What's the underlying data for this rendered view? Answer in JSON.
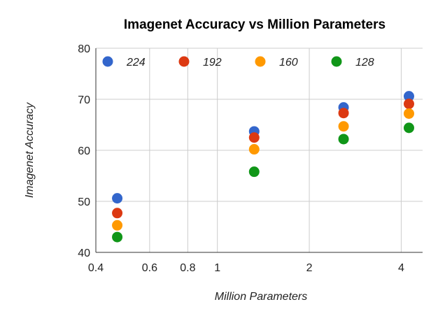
{
  "chart_data": {
    "type": "scatter",
    "title": "Imagenet Accuracy vs Million Parameters",
    "xlabel": "Million Parameters",
    "ylabel": "Imagenet Accuracy",
    "xscale": "log",
    "xlim": [
      0.4,
      4.7
    ],
    "ylim": [
      40,
      80
    ],
    "xticks": [
      0.4,
      0.6,
      0.8,
      1,
      2,
      4
    ],
    "xtick_labels": [
      "0.4",
      "0.6",
      "0.8",
      "1",
      "2",
      "4"
    ],
    "yticks": [
      40,
      50,
      60,
      70,
      80
    ],
    "ytick_labels": [
      "40",
      "50",
      "60",
      "70",
      "80"
    ],
    "grid": true,
    "legend": "top, inside plot",
    "x": [
      0.47,
      1.32,
      2.59,
      4.24
    ],
    "series": [
      {
        "name": "224",
        "color": "#3366cc",
        "values": [
          50.6,
          63.7,
          68.4,
          70.6
        ]
      },
      {
        "name": "192",
        "color": "#dc3912",
        "values": [
          47.7,
          62.5,
          67.3,
          69.1
        ]
      },
      {
        "name": "160",
        "color": "#ff9900",
        "values": [
          45.3,
          60.2,
          64.7,
          67.2
        ]
      },
      {
        "name": "128",
        "color": "#109618",
        "values": [
          43.0,
          55.8,
          62.2,
          64.4
        ]
      }
    ]
  }
}
